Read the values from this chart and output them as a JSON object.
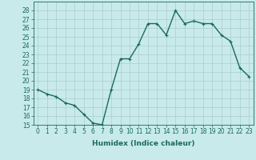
{
  "x": [
    0,
    1,
    2,
    3,
    4,
    5,
    6,
    7,
    8,
    9,
    10,
    11,
    12,
    13,
    14,
    15,
    16,
    17,
    18,
    19,
    20,
    21,
    22,
    23
  ],
  "y": [
    19,
    18.5,
    18.2,
    17.5,
    17.2,
    16.2,
    15.2,
    15.0,
    19.0,
    22.5,
    22.5,
    24.2,
    26.5,
    26.5,
    25.2,
    28.0,
    26.5,
    26.8,
    26.5,
    26.5,
    25.2,
    24.5,
    21.5,
    20.5
  ],
  "line_color": "#1a6b5a",
  "marker": "+",
  "marker_size": 3,
  "bg_color": "#c8eaea",
  "grid_color": "#aacccc",
  "xlabel": "Humidex (Indice chaleur)",
  "xlim": [
    -0.5,
    23.5
  ],
  "ylim": [
    15,
    29
  ],
  "yticks": [
    15,
    16,
    17,
    18,
    19,
    20,
    21,
    22,
    23,
    24,
    25,
    26,
    27,
    28
  ],
  "xticks": [
    0,
    1,
    2,
    3,
    4,
    5,
    6,
    7,
    8,
    9,
    10,
    11,
    12,
    13,
    14,
    15,
    16,
    17,
    18,
    19,
    20,
    21,
    22,
    23
  ],
  "tick_color": "#1a6b5a",
  "label_color": "#1a6b5a",
  "axis_color": "#1a6b5a",
  "font_size": 5.5,
  "xlabel_fontsize": 6.5,
  "linewidth": 1.0
}
